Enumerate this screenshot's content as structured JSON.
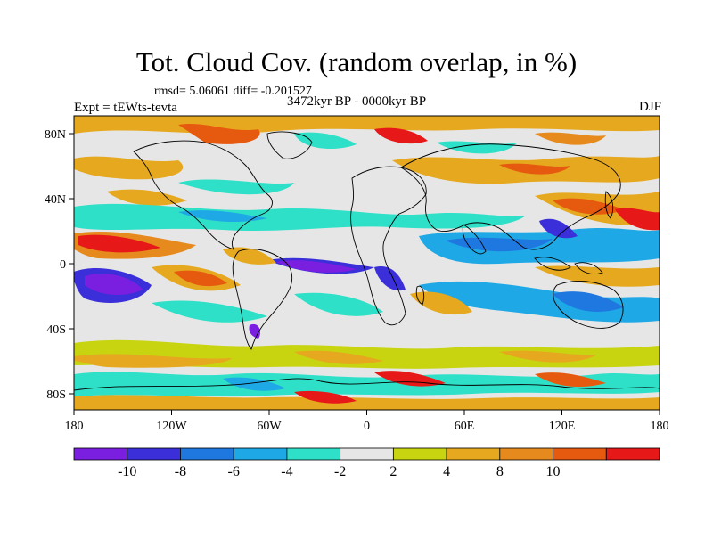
{
  "title": "Tot. Cloud Cov. (random overlap, in %)",
  "stats": "rmsd= 5.06061 diff= -0.201527",
  "experiment": "Expt = tEWts-tevta",
  "period": "3472kyr BP - 0000kyr BP",
  "season": "DJF",
  "map": {
    "lon_ticks": [
      "180",
      "120W",
      "60W",
      "0",
      "60E",
      "120E",
      "180"
    ],
    "lat_ticks": [
      "80N",
      "40N",
      "0",
      "40S",
      "80S"
    ]
  },
  "colorbar": {
    "labels": [
      "-10",
      "-8",
      "-6",
      "-4",
      "-2",
      "2",
      "4",
      "8",
      "10"
    ],
    "colors": [
      "#7a1fe0",
      "#3a2fd8",
      "#1f78e0",
      "#1ea8e6",
      "#2ee0c8",
      "#e6e6e6",
      "#c8d410",
      "#e6a81e",
      "#e68a1e",
      "#e65a10",
      "#e61818"
    ]
  }
}
